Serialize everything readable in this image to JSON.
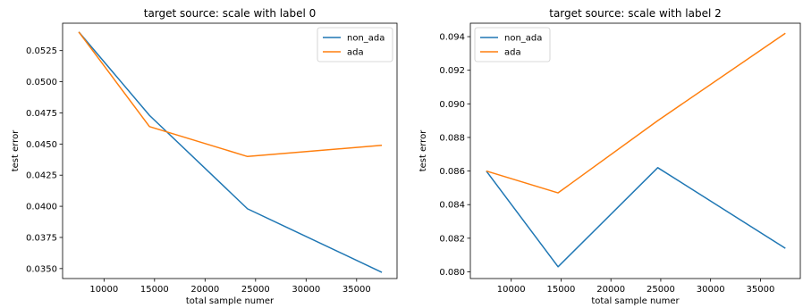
{
  "chart_data": [
    {
      "type": "line",
      "title": "target source: scale with label 0",
      "xlabel": "total sample numer",
      "ylabel": "test error",
      "xlim": [
        5900,
        39000
      ],
      "ylim": [
        0.0342,
        0.0547
      ],
      "xticks": [
        10000,
        15000,
        20000,
        25000,
        30000,
        35000
      ],
      "xtick_labels": [
        "10000",
        "15000",
        "20000",
        "25000",
        "30000",
        "35000"
      ],
      "yticks": [
        0.035,
        0.0375,
        0.04,
        0.0425,
        0.045,
        0.0475,
        0.05,
        0.0525
      ],
      "ytick_labels": [
        "0.0350",
        "0.0375",
        "0.0400",
        "0.0425",
        "0.0450",
        "0.0475",
        "0.0500",
        "0.0525"
      ],
      "grid": false,
      "legend_position": "top-right",
      "series": [
        {
          "name": "non_ada",
          "color": "#1f77b4",
          "x": [
            7500,
            14500,
            24200,
            37500
          ],
          "y": [
            0.054,
            0.0473,
            0.0398,
            0.0347
          ]
        },
        {
          "name": "ada",
          "color": "#ff7f0e",
          "x": [
            7500,
            14500,
            24200,
            37500
          ],
          "y": [
            0.054,
            0.0464,
            0.044,
            0.0449
          ]
        }
      ]
    },
    {
      "type": "line",
      "title": "target source: scale with label 2",
      "xlabel": "total sample numer",
      "ylabel": "test error",
      "xlim": [
        5900,
        39000
      ],
      "ylim": [
        0.0796,
        0.0948
      ],
      "xticks": [
        10000,
        15000,
        20000,
        25000,
        30000,
        35000
      ],
      "xtick_labels": [
        "10000",
        "15000",
        "20000",
        "25000",
        "30000",
        "35000"
      ],
      "yticks": [
        0.08,
        0.082,
        0.084,
        0.086,
        0.088,
        0.09,
        0.092,
        0.094
      ],
      "ytick_labels": [
        "0.080",
        "0.082",
        "0.084",
        "0.086",
        "0.088",
        "0.090",
        "0.092",
        "0.094"
      ],
      "grid": false,
      "legend_position": "top-left",
      "series": [
        {
          "name": "non_ada",
          "color": "#1f77b4",
          "x": [
            7500,
            14700,
            24700,
            37500
          ],
          "y": [
            0.086,
            0.0803,
            0.0862,
            0.0814
          ]
        },
        {
          "name": "ada",
          "color": "#ff7f0e",
          "x": [
            7500,
            14700,
            24700,
            37500
          ],
          "y": [
            0.086,
            0.0847,
            0.089,
            0.0942
          ]
        }
      ]
    }
  ]
}
